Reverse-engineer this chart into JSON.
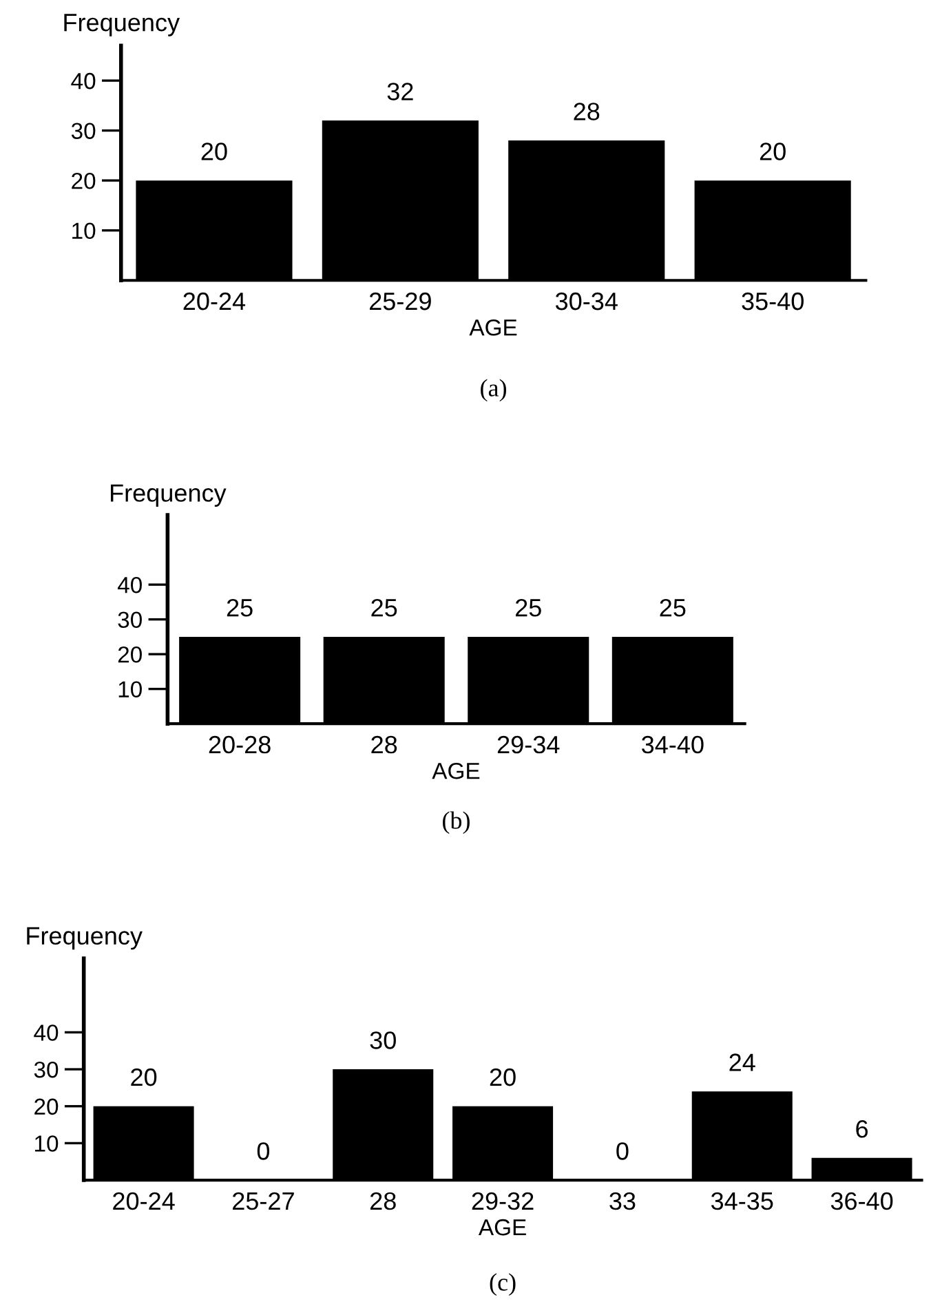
{
  "chart_data": [
    {
      "type": "bar",
      "ylabel": "Frequency",
      "xlabel": "AGE",
      "categories": [
        "20-24",
        "25-29",
        "30-34",
        "35-40"
      ],
      "values": [
        20,
        32,
        28,
        20
      ],
      "color": "#000000",
      "data_labels": true,
      "ylim": [
        0,
        47
      ],
      "yticks": [
        10,
        20,
        30,
        40
      ],
      "grid": false,
      "legend": false,
      "annotations": [
        "(a)"
      ]
    },
    {
      "type": "bar",
      "ylabel": "Frequency",
      "xlabel": "AGE",
      "categories": [
        "20-28",
        "28",
        "29-34",
        "34-40"
      ],
      "values": [
        25,
        25,
        25,
        25
      ],
      "color": "#000000",
      "data_labels": true,
      "ylim": [
        0,
        60
      ],
      "yticks": [
        10,
        20,
        30,
        40
      ],
      "grid": false,
      "legend": false,
      "annotations": [
        "(b)"
      ]
    },
    {
      "type": "bar",
      "ylabel": "Frequency",
      "xlabel": "AGE",
      "categories": [
        "20-24",
        "25-27",
        "28",
        "29-32",
        "33",
        "34-35",
        "36-40"
      ],
      "values": [
        20,
        0,
        30,
        20,
        0,
        24,
        6
      ],
      "color": "#000000",
      "data_labels": true,
      "ylim": [
        0,
        60
      ],
      "yticks": [
        10,
        20,
        30,
        40
      ],
      "grid": false,
      "legend": false,
      "annotations": [
        "(c)"
      ]
    }
  ]
}
